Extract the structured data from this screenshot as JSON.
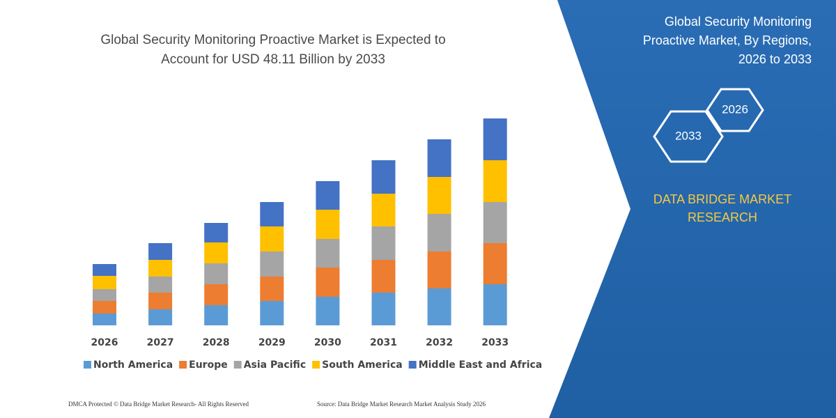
{
  "chart_data": {
    "type": "stacked_bar",
    "title": [
      "Global Security Monitoring Proactive Market is Expected to",
      "Account for USD 48.11 Billion by 2033"
    ],
    "categories": [
      "2026",
      "2027",
      "2028",
      "2029",
      "2030",
      "2031",
      "2032",
      "2033"
    ],
    "series": [
      {
        "name": "North America",
        "color": "#5b9bd5",
        "values": [
          17,
          23,
          29,
          35,
          41,
          47,
          53,
          59
        ]
      },
      {
        "name": "Europe",
        "color": "#ed7d31",
        "values": [
          18,
          24,
          30,
          35,
          42,
          47,
          53,
          59
        ]
      },
      {
        "name": "Asia Pacific",
        "color": "#a5a5a5",
        "values": [
          17,
          23,
          30,
          36,
          41,
          48,
          54,
          59
        ]
      },
      {
        "name": "South America",
        "color": "#ffc000",
        "values": [
          19,
          24,
          30,
          36,
          42,
          47,
          53,
          60
        ]
      },
      {
        "name": "Middle East and Africa",
        "color": "#4472c4",
        "values": [
          17,
          24,
          28,
          35,
          41,
          48,
          54,
          60
        ]
      }
    ],
    "ylim": [
      0,
      300
    ]
  },
  "side_panel": {
    "title": [
      "Global Security Monitoring",
      "Proactive Market, By Regions,",
      "2026 to 2033"
    ],
    "hexagons": [
      "2026",
      "2033"
    ],
    "brand": [
      "DATA BRIDGE MARKET",
      "RESEARCH"
    ]
  },
  "footer": {
    "left": "DMCA Protected © Data Bridge Market Research- All Rights Reserved",
    "right": "Source: Data Bridge Market Research Market Analysis Study 2026"
  }
}
